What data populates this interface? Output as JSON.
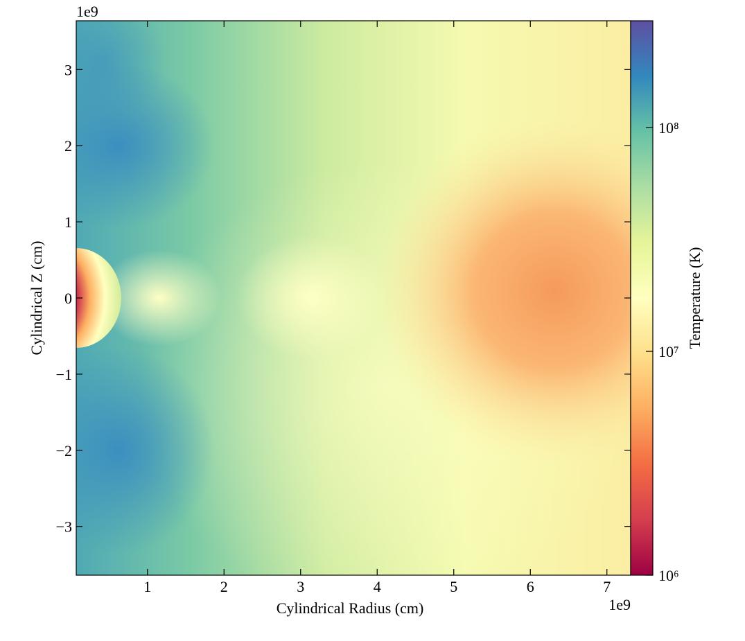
{
  "chart_data": {
    "type": "heatmap",
    "xlabel": "Cylindrical Radius  (cm)",
    "ylabel": "Cylindrical Z  (cm)",
    "x_offset_label": "1e9",
    "y_offset_label": "1e9",
    "xlim": [
      0.07,
      7.31
    ],
    "ylim": [
      -3.64,
      3.64
    ],
    "xticks": [
      1,
      2,
      3,
      4,
      5,
      6,
      7
    ],
    "yticks": [
      {
        "value": -3,
        "label": "−3"
      },
      {
        "value": -2,
        "label": "−2"
      },
      {
        "value": -1,
        "label": "−1"
      },
      0,
      1,
      2,
      3
    ],
    "colorbar": {
      "label": "Temperature  (K)",
      "scale": "log",
      "clim": [
        1000000,
        300000000
      ],
      "ticks": [
        {
          "value": 1000000,
          "label": "10⁶"
        },
        {
          "value": 10000000,
          "label": "10⁷"
        },
        {
          "value": 100000000,
          "label": "10⁸"
        }
      ],
      "colormap": [
        "#9e0142",
        "#d53e4f",
        "#f46d43",
        "#fdae61",
        "#fee08b",
        "#ffffbf",
        "#e6f598",
        "#abdda4",
        "#66c2a5",
        "#3288bd",
        "#5e4fa2"
      ]
    }
  }
}
